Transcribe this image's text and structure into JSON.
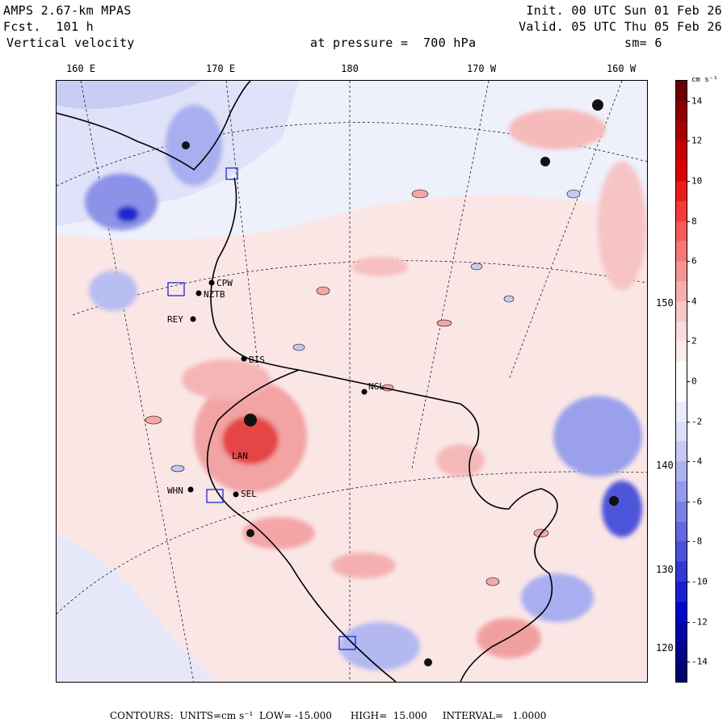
{
  "header": {
    "model": "AMPS 2.67-km MPAS",
    "forecast": "Fcst.  101 h",
    "field": "Vertical velocity",
    "init": "Init. 00 UTC Sun 01 Feb 26",
    "valid": "Valid. 05 UTC Thu 05 Feb 26",
    "pressure": "at pressure =  700 hPa",
    "smoothing": "sm= 6"
  },
  "longitude_labels": [
    "160 E",
    "170 E",
    "180",
    "170 W",
    "160 W"
  ],
  "latitude_labels": [
    "150 W",
    "140 W",
    "130 W",
    "120 W"
  ],
  "stations": [
    "CPW",
    "NZTB",
    "REY",
    "BIS",
    "NGL",
    "LAN",
    "WHN",
    "SEL"
  ],
  "colorbar": {
    "units": "cm s⁻¹",
    "ticks": [
      "14",
      "12",
      "10",
      "8",
      "6",
      "4",
      "2",
      "0",
      "-2",
      "-4",
      "-6",
      "-8",
      "-10",
      "-12",
      "-14"
    ],
    "colors": [
      "#6a0000",
      "#8a0000",
      "#a50000",
      "#c40000",
      "#d80000",
      "#e81c1c",
      "#f23a3a",
      "#f55a5a",
      "#f57878",
      "#f49494",
      "#f5aeae",
      "#f7c8c8",
      "#fadcdc",
      "#fcebeb",
      "#ffffff",
      "#ffffff",
      "#ecedfb",
      "#dcdef8",
      "#c6c9f4",
      "#adb1ef",
      "#9599ea",
      "#7c80e4",
      "#6468df",
      "#4b50da",
      "#3238d4",
      "#1a20cf",
      "#0008c8",
      "#0006a8",
      "#00058a",
      "#00036c"
    ]
  },
  "footer": {
    "text": "CONTOURS:  UNITS=cm s⁻¹  LOW= -15.000      HIGH=  15.000     INTERVAL=   1.0000"
  }
}
